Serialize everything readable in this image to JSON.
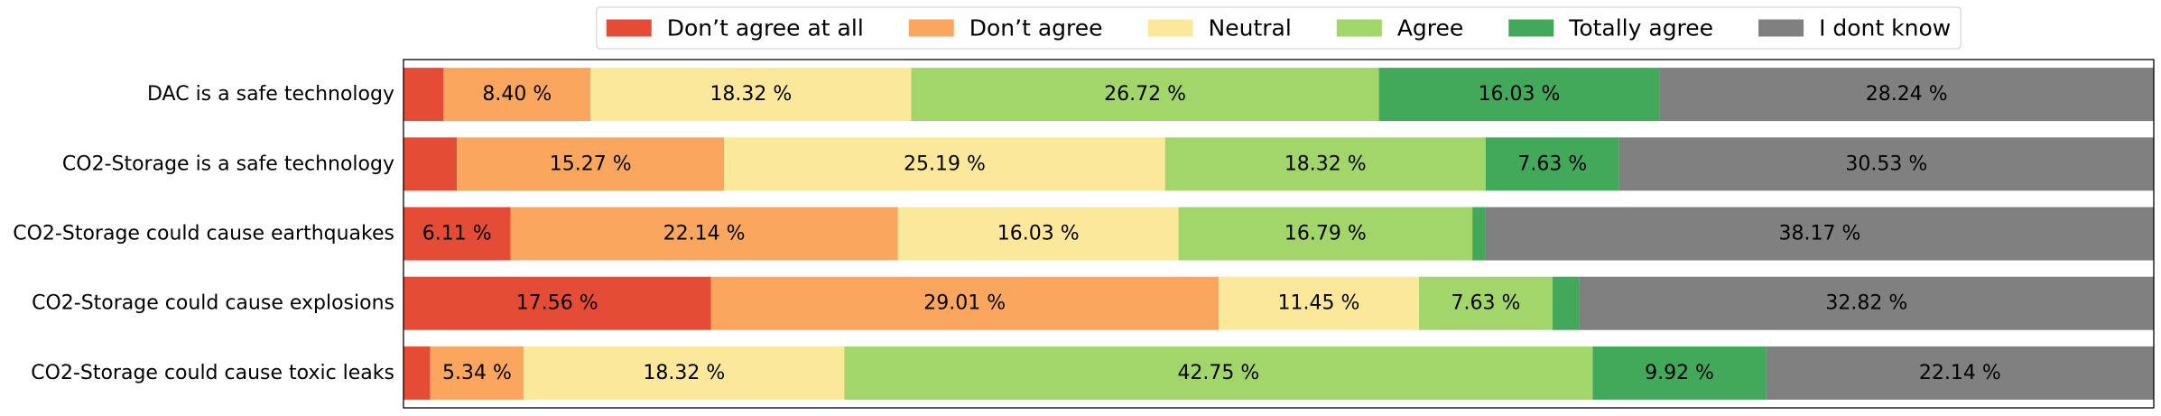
{
  "chart_data": {
    "type": "bar",
    "orientation": "horizontal",
    "stacked": true,
    "normalized_percent": true,
    "title": "",
    "xlabel": "",
    "ylabel": "",
    "xlim": [
      0,
      100
    ],
    "xaxis_ticks_visible": false,
    "grid": false,
    "legend_position": "top-center, above plot",
    "categories": [
      "DAC is a safe technology",
      "CO2-Storage is a safe technology",
      "CO2-Storage could cause earthquakes",
      "CO2-Storage could cause explosions",
      "CO2-Storage could cause toxic leaks"
    ],
    "series": [
      {
        "name": "Don’t agree at all",
        "color": "#e54c35",
        "values": [
          2.29,
          3.05,
          6.11,
          17.56,
          1.53
        ]
      },
      {
        "name": "Don’t agree",
        "color": "#fba65f",
        "values": [
          8.4,
          15.27,
          22.14,
          29.01,
          5.34
        ]
      },
      {
        "name": "Neutral",
        "color": "#fce89a",
        "values": [
          18.32,
          25.19,
          16.03,
          11.45,
          18.32
        ]
      },
      {
        "name": "Agree",
        "color": "#a2d56a",
        "values": [
          26.72,
          18.32,
          16.79,
          7.63,
          42.75
        ]
      },
      {
        "name": "Totally agree",
        "color": "#42a95a",
        "values": [
          16.03,
          7.63,
          0.76,
          1.53,
          9.92
        ]
      },
      {
        "name": "I dont know",
        "color": "#808080",
        "values": [
          28.24,
          30.53,
          38.17,
          32.82,
          22.14
        ]
      }
    ],
    "data_labels": [
      [
        "",
        "8.40 %",
        "18.32 %",
        "26.72 %",
        "16.03 %",
        "28.24 %"
      ],
      [
        "",
        "15.27 %",
        "25.19 %",
        "18.32 %",
        "7.63 %",
        "30.53 %"
      ],
      [
        "6.11 %",
        "22.14 %",
        "16.03 %",
        "16.79 %",
        "",
        "38.17 %"
      ],
      [
        "17.56 %",
        "29.01 %",
        "11.45 %",
        "7.63 %",
        "",
        "32.82 %"
      ],
      [
        "",
        "5.34 %",
        "18.32 %",
        "42.75 %",
        "9.92 %",
        "22.14 %"
      ]
    ]
  }
}
